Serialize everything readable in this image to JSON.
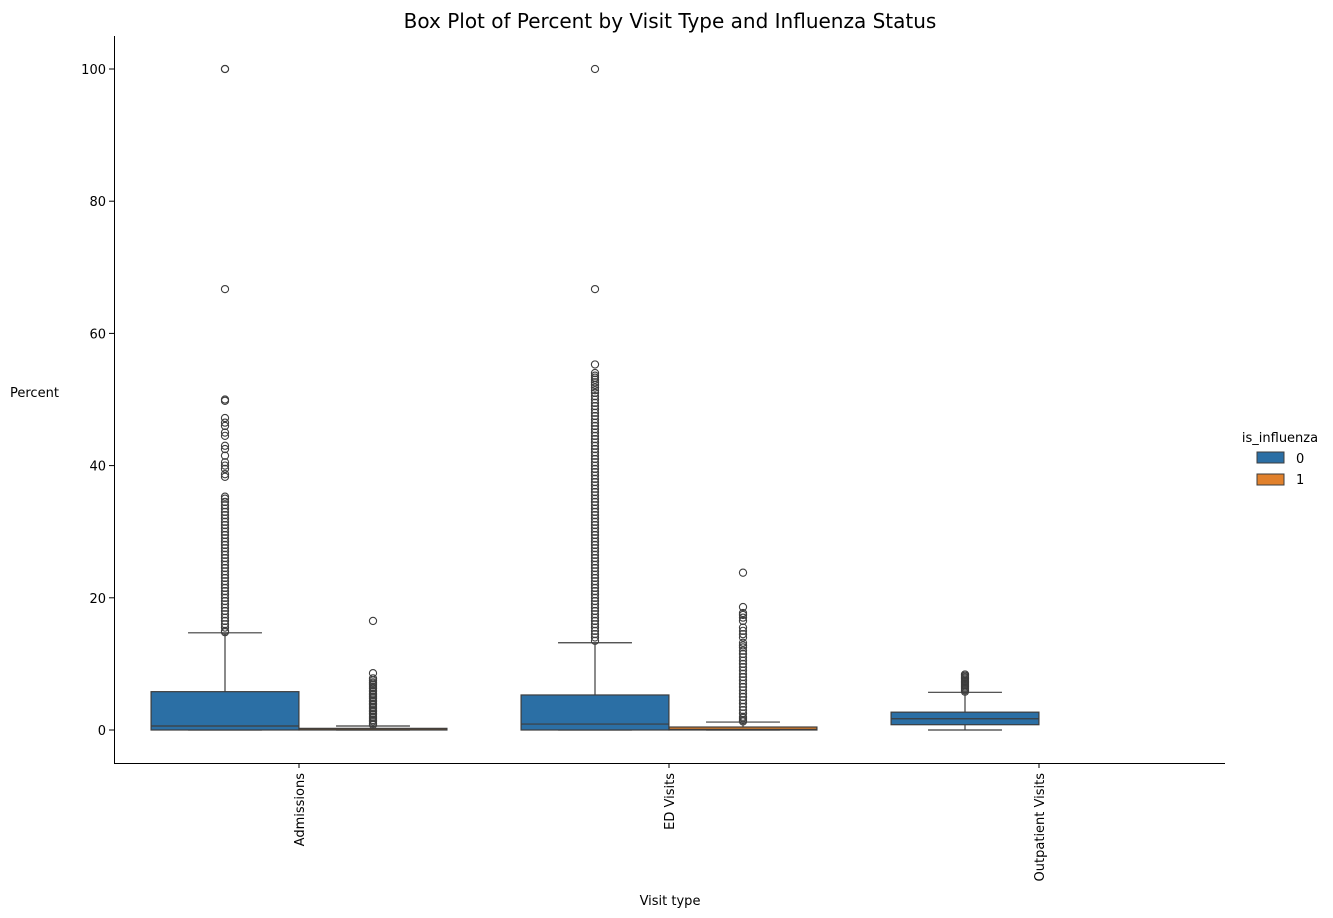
{
  "chart_data": {
    "type": "box",
    "title": "Box Plot of Percent by Visit Type and Influenza Status",
    "xlabel": "Visit type",
    "ylabel": "Percent",
    "categories": [
      "Admissions",
      "ED Visits",
      "Outpatient Visits"
    ],
    "ylim": [
      -5,
      105
    ],
    "yticks": [
      0,
      20,
      40,
      60,
      80,
      100
    ],
    "grid": false,
    "legend": {
      "title": "is_influenza",
      "placement": "right",
      "entries": [
        "0",
        "1"
      ]
    },
    "colors": {
      "0": "#2b6fa5",
      "1": "#e1812c",
      "outline": "#3d3d3d"
    },
    "series": [
      {
        "name": "0",
        "boxes": [
          {
            "category": "Admissions",
            "whislo": 0,
            "q1": 0,
            "median": 0.6,
            "q3": 5.8,
            "whishi": 14.7,
            "outliers": [
              100,
              100,
              66.7,
              50,
              49.8,
              47.2,
              46.5,
              46,
              45,
              44.5,
              43,
              42.5,
              41.5,
              40.5,
              40,
              39.5,
              38.7,
              38.3,
              35.3,
              35,
              34.5,
              34,
              33.5,
              33,
              32.5,
              32,
              31.5,
              31,
              30.5,
              30,
              29.5,
              29,
              28.5,
              28,
              27.5,
              27,
              26.5,
              26,
              25.5,
              25,
              24.5,
              24,
              23.5,
              23,
              22.5,
              22,
              21.5,
              21,
              20.5,
              20,
              19.5,
              19,
              18.5,
              18,
              17.5,
              17,
              16.5,
              16,
              15.5,
              15,
              14.8
            ]
          },
          {
            "category": "ED Visits",
            "whislo": 0,
            "q1": 0,
            "median": 0.9,
            "q3": 5.3,
            "whishi": 13.2,
            "outliers": [
              100,
              66.7,
              55.3,
              54,
              53.6,
              53.3,
              53,
              52.6,
              52.2,
              51.8,
              51.4,
              51,
              50.5,
              50,
              49.5,
              49,
              48.5,
              48,
              47.5,
              47,
              46.5,
              46,
              45.5,
              45,
              44.5,
              44,
              43.5,
              43,
              42.5,
              42,
              41.5,
              41,
              40.5,
              40,
              39.5,
              39,
              38.5,
              38,
              37.5,
              37,
              36.5,
              36,
              35.5,
              35,
              34.5,
              34,
              33.5,
              33,
              32.5,
              32,
              31.5,
              31,
              30.5,
              30,
              29.5,
              29,
              28.5,
              28,
              27.5,
              27,
              26.5,
              26,
              25.5,
              25,
              24.5,
              24,
              23.5,
              23,
              22.5,
              22,
              21.5,
              21,
              20.5,
              20,
              19.5,
              19,
              18.5,
              18,
              17.5,
              17,
              16.5,
              16,
              15.5,
              15,
              14.5,
              14,
              13.5
            ]
          },
          {
            "category": "Outpatient Visits",
            "whislo": 0,
            "q1": 0.8,
            "median": 1.7,
            "q3": 2.7,
            "whishi": 5.7,
            "outliers": [
              8.4,
              8.2,
              8,
              7.8,
              7.6,
              7.4,
              7.2,
              7,
              6.8,
              6.6,
              6.4,
              6.2,
              6,
              5.8
            ]
          }
        ]
      },
      {
        "name": "1",
        "boxes": [
          {
            "category": "Admissions",
            "whislo": 0,
            "q1": 0,
            "median": 0.05,
            "q3": 0.25,
            "whishi": 0.6,
            "outliers": [
              16.5,
              8.6,
              7.8,
              7.5,
              7.2,
              7,
              6.8,
              6.5,
              6.3,
              6,
              5.8,
              5.5,
              5.3,
              5,
              4.8,
              4.5,
              4.3,
              4,
              3.8,
              3.5,
              3.3,
              3,
              2.8,
              2.5,
              2.3,
              2,
              1.8,
              1.5,
              1.3,
              1,
              0.8
            ]
          },
          {
            "category": "ED Visits",
            "whislo": 0,
            "q1": 0,
            "median": 0.1,
            "q3": 0.45,
            "whishi": 1.2,
            "outliers": [
              23.8,
              18.6,
              17.7,
              17.4,
              17,
              16.5,
              15.5,
              15,
              14.5,
              14,
              13.2,
              12.8,
              12.5,
              12,
              11.5,
              11,
              10.5,
              10,
              9.5,
              9,
              8.5,
              8,
              7.5,
              7,
              6.5,
              6,
              5.5,
              5,
              4.5,
              4,
              3.5,
              3,
              2.5,
              2,
              1.8,
              1.5,
              1.3
            ]
          }
        ]
      }
    ]
  }
}
